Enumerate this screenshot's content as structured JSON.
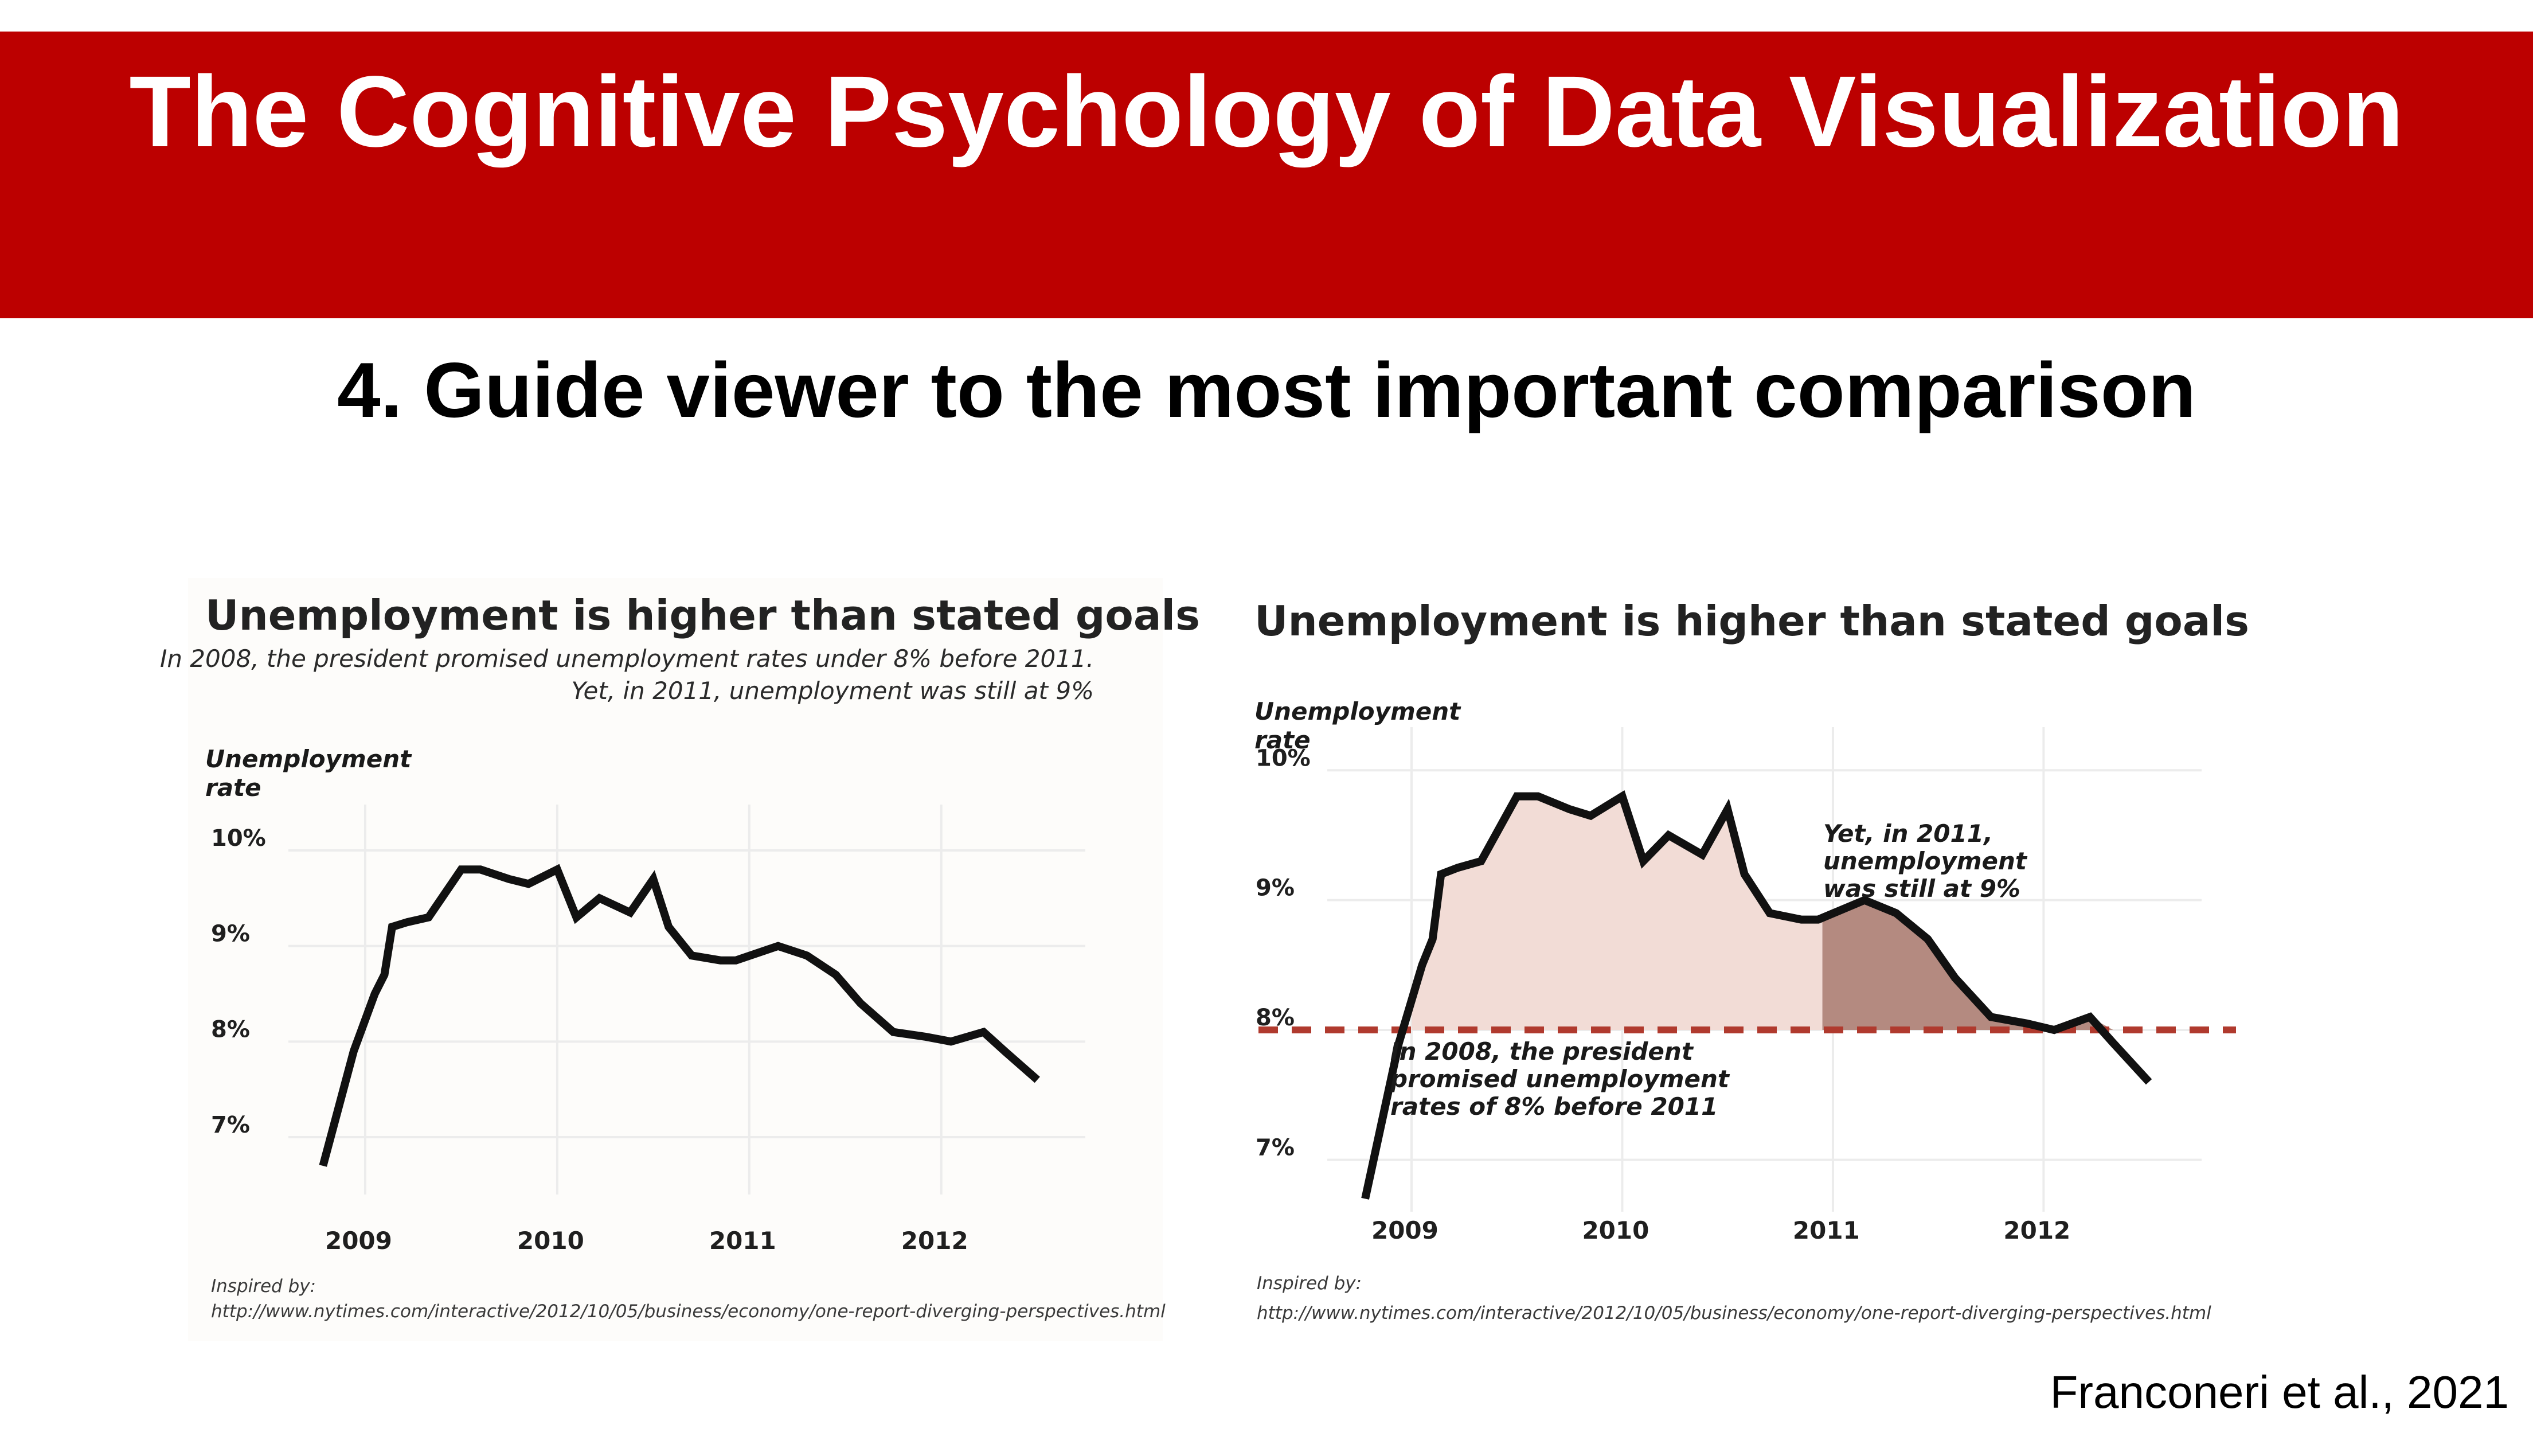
{
  "slide": {
    "title": "The Cognitive Psychology of Data Visualization",
    "subtitle": "4. Guide viewer to the most important comparison",
    "credit": "Franconeri et al., 2021",
    "banner_color": "#bc0000"
  },
  "chart_data": [
    {
      "type": "line",
      "title": "Unemployment is higher than stated goals",
      "note_lines": [
        "In 2008, the president promised unemployment rates under 8% before 2011.",
        "Yet, in 2011, unemployment was still at 9%"
      ],
      "ylabel_lines": [
        "Unemployment",
        "rate"
      ],
      "yticks": [
        "10%",
        "9%",
        "8%",
        "7%"
      ],
      "ytick_values": [
        10,
        9,
        8,
        7
      ],
      "xticks": [
        "2009",
        "2010",
        "2011",
        "2012"
      ],
      "xtick_values": [
        2009.0,
        2010.0,
        2011.0,
        2012.0
      ],
      "ylim": [
        6.4,
        10.3
      ],
      "grid": true,
      "series": [
        {
          "color": "#111111",
          "x": [
            2008.78,
            2008.94,
            2009.05,
            2009.1,
            2009.14,
            2009.22,
            2009.33,
            2009.5,
            2009.6,
            2009.75,
            2009.85,
            2010.0,
            2010.1,
            2010.22,
            2010.38,
            2010.5,
            2010.58,
            2010.7,
            2010.85,
            2010.93,
            2011.15,
            2011.3,
            2011.45,
            2011.58,
            2011.75,
            2011.92,
            2012.05,
            2012.22,
            2012.33,
            2012.5
          ],
          "y": [
            6.7,
            7.9,
            8.5,
            8.7,
            9.2,
            9.25,
            9.3,
            9.8,
            9.8,
            9.7,
            9.65,
            9.8,
            9.3,
            9.5,
            9.35,
            9.7,
            9.2,
            8.9,
            8.85,
            8.85,
            9.0,
            8.9,
            8.7,
            8.4,
            8.1,
            8.05,
            8.0,
            8.1,
            7.9,
            7.6
          ]
        }
      ],
      "source_lines": [
        "Inspired by:",
        "http://www.nytimes.com/interactive/2012/10/05/business/economy/one-report-diverging-perspectives.html"
      ]
    },
    {
      "type": "area",
      "title": "Unemployment is higher than stated goals",
      "ylabel_lines": [
        "Unemployment",
        "rate"
      ],
      "yticks": [
        "10%",
        "9%",
        "8%",
        "7%"
      ],
      "ytick_values": [
        10,
        9,
        8,
        7
      ],
      "xticks": [
        "2009",
        "2010",
        "2011",
        "2012"
      ],
      "xtick_values": [
        2009.0,
        2010.0,
        2011.0,
        2012.0
      ],
      "ylim": [
        6.6,
        10.2
      ],
      "grid": true,
      "reference_line": {
        "y": 8.0,
        "color": "#b03a2e",
        "style": "dashed"
      },
      "shaded_regions": [
        {
          "from_x": 2009.0,
          "to_x": 2010.95,
          "color": "#f2dcd6"
        },
        {
          "from_x": 2010.95,
          "to_x": 2012.5,
          "color": "#b48a80"
        }
      ],
      "annotations": [
        {
          "lines": [
            "Yet, in 2011,",
            "unemployment",
            "was still at 9%"
          ]
        },
        {
          "lines": [
            "In 2008, the president",
            "promised unemployment",
            "rates of 8% before 2011"
          ]
        }
      ],
      "series": [
        {
          "color": "#111111",
          "x": [
            2008.78,
            2008.94,
            2009.05,
            2009.1,
            2009.14,
            2009.22,
            2009.33,
            2009.5,
            2009.6,
            2009.75,
            2009.85,
            2010.0,
            2010.1,
            2010.22,
            2010.38,
            2010.5,
            2010.58,
            2010.7,
            2010.85,
            2010.93,
            2011.15,
            2011.3,
            2011.45,
            2011.58,
            2011.75,
            2011.92,
            2012.05,
            2012.22,
            2012.33,
            2012.5
          ],
          "y": [
            6.7,
            7.9,
            8.5,
            8.7,
            9.2,
            9.25,
            9.3,
            9.8,
            9.8,
            9.7,
            9.65,
            9.8,
            9.3,
            9.5,
            9.35,
            9.7,
            9.2,
            8.9,
            8.85,
            8.85,
            9.0,
            8.9,
            8.7,
            8.4,
            8.1,
            8.05,
            8.0,
            8.1,
            7.9,
            7.6
          ]
        }
      ],
      "source_lines": [
        "Inspired by:",
        "http://www.nytimes.com/interactive/2012/10/05/business/economy/one-report-diverging-perspectives.html"
      ]
    }
  ]
}
